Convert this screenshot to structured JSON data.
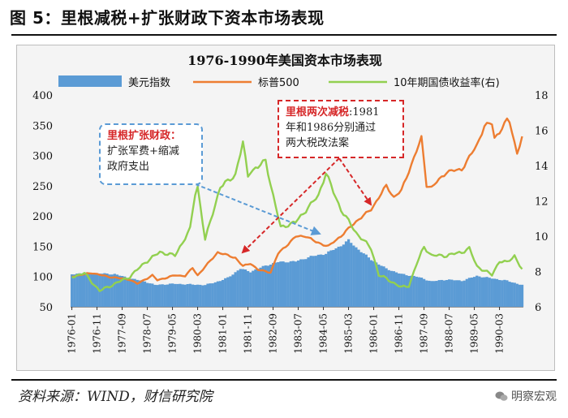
{
  "figure": {
    "title": "图 5：里根减税+扩张财政下资本市场表现",
    "source": "资料来源：WIND，财信研究院",
    "watermark": "明察宏观"
  },
  "annotations": {
    "left": {
      "title": "里根扩张财政：",
      "lines": [
        "扩张军费+缩减",
        "政府支出"
      ]
    },
    "right": {
      "title": "里根两次减税",
      "title_suffix": ":1981",
      "lines": [
        "年和1986分别通过",
        "两大税改法案"
      ]
    }
  },
  "colors": {
    "bar": "#5b9bd5",
    "sp500": "#ed7d31",
    "bond": "#92d050",
    "arrow_red": "#d62728",
    "arrow_blue": "#5b9bd5"
  },
  "chart_data": {
    "type": "bar+line",
    "title": "1976-1990年美国资本市场表现",
    "legend_position": "top",
    "x_tick_labels": [
      "1976-01",
      "1976-11",
      "1977-09",
      "1978-07",
      "1979-05",
      "1980-03",
      "1981-01",
      "1981-11",
      "1982-09",
      "1983-07",
      "1984-05",
      "1985-03",
      "1986-01",
      "1986-11",
      "1987-09",
      "1988-07",
      "1989-05",
      "1990-03"
    ],
    "x_range": [
      "1976-01",
      "1990-12"
    ],
    "y_left": {
      "min": 50,
      "max": 400,
      "ticks": [
        50,
        100,
        150,
        200,
        250,
        300,
        350,
        400
      ]
    },
    "y_right": {
      "min": 6,
      "max": 18,
      "ticks": [
        6,
        8,
        10,
        12,
        14,
        16,
        18
      ]
    },
    "series": [
      {
        "name": "美元指数",
        "type": "bar",
        "axis": "left",
        "monthly_anchors": {
          "1976-01": 104,
          "1976-06": 106,
          "1976-12": 105,
          "1977-06": 104,
          "1977-12": 97,
          "1978-06": 92,
          "1978-10": 86,
          "1979-01": 87,
          "1979-06": 88,
          "1979-12": 87,
          "1980-06": 86,
          "1980-12": 93,
          "1981-03": 98,
          "1981-08": 113,
          "1981-12": 108,
          "1982-06": 118,
          "1982-11": 124,
          "1983-06": 125,
          "1983-12": 133,
          "1984-06": 138,
          "1984-12": 151,
          "1985-03": 160,
          "1985-06": 148,
          "1985-12": 128,
          "1986-06": 113,
          "1986-12": 104,
          "1987-06": 100,
          "1987-12": 92,
          "1988-06": 95,
          "1988-12": 93,
          "1989-06": 101,
          "1989-12": 97,
          "1990-06": 93,
          "1990-12": 86
        }
      },
      {
        "name": "标普500",
        "type": "line",
        "axis": "left",
        "monthly_anchors": {
          "1976-01": 100,
          "1976-09": 106,
          "1977-03": 100,
          "1977-12": 95,
          "1978-03": 88,
          "1978-09": 102,
          "1978-11": 94,
          "1979-06": 102,
          "1979-10": 101,
          "1980-01": 114,
          "1980-03": 102,
          "1980-11": 140,
          "1981-06": 131,
          "1981-09": 117,
          "1981-12": 122,
          "1982-03": 111,
          "1982-08": 107,
          "1982-11": 138,
          "1983-06": 166,
          "1983-10": 167,
          "1984-02": 157,
          "1984-07": 150,
          "1984-12": 167,
          "1985-06": 191,
          "1985-12": 211,
          "1986-06": 250,
          "1986-09": 231,
          "1986-12": 242,
          "1987-08": 329,
          "1987-10": 251,
          "1987-12": 247,
          "1988-06": 273,
          "1988-12": 277,
          "1989-06": 317,
          "1989-09": 349,
          "1989-12": 353,
          "1990-01": 329,
          "1990-03": 339,
          "1990-06": 358,
          "1990-07": 356,
          "1990-10": 304,
          "1990-12": 330
        }
      },
      {
        "name": "10年期国债收益率(右)",
        "type": "line",
        "axis": "right",
        "monthly_anchors": {
          "1976-01": 7.7,
          "1976-06": 7.9,
          "1976-12": 6.9,
          "1977-06": 7.3,
          "1977-12": 7.7,
          "1978-06": 8.5,
          "1978-12": 9.1,
          "1979-06": 8.9,
          "1979-12": 10.4,
          "1980-02": 12.4,
          "1980-03": 12.8,
          "1980-06": 9.8,
          "1980-12": 12.8,
          "1981-03": 13.1,
          "1981-06": 13.5,
          "1981-09": 15.3,
          "1981-11": 13.4,
          "1981-12": 13.7,
          "1982-03": 13.9,
          "1982-06": 14.3,
          "1982-09": 12.3,
          "1982-12": 10.5,
          "1983-06": 10.8,
          "1983-12": 11.8,
          "1984-03": 12.3,
          "1984-06": 13.6,
          "1984-09": 12.5,
          "1984-12": 11.5,
          "1985-06": 10.2,
          "1985-12": 9.3,
          "1986-03": 7.8,
          "1986-06": 7.6,
          "1986-12": 7.1,
          "1987-03": 7.2,
          "1987-06": 8.4,
          "1987-09": 9.4,
          "1987-12": 8.9,
          "1988-06": 8.9,
          "1988-12": 9.1,
          "1989-03": 9.3,
          "1989-06": 8.3,
          "1989-12": 7.8,
          "1990-03": 8.6,
          "1990-06": 8.5,
          "1990-09": 8.9,
          "1990-12": 8.1
        }
      }
    ]
  }
}
